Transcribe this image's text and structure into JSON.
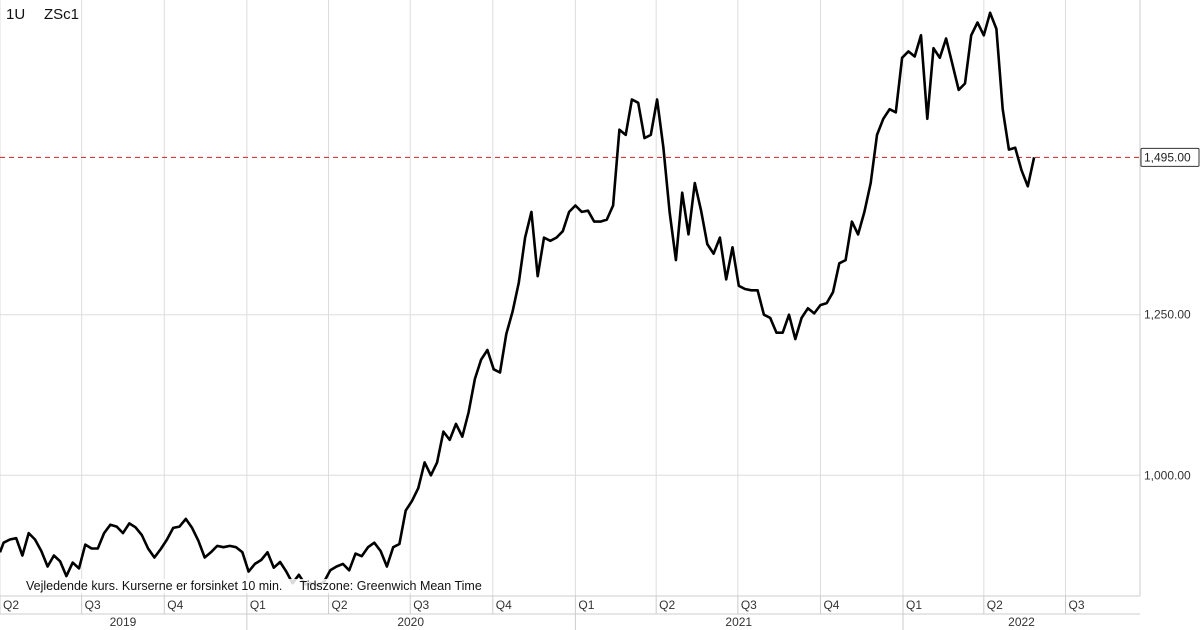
{
  "header": {
    "period": "1U",
    "symbol": "ZSc1"
  },
  "footnote": "Vejledende kurs. Kurserne er forsinket 10 min.     Tidszone: Greenwich Mean Time",
  "colors": {
    "line": "#000000",
    "reference": "#cc2222",
    "grid": "#dddddd"
  },
  "chart_data": {
    "type": "line",
    "y_ticks": [
      {
        "value": 1000,
        "label": "1,000.00"
      },
      {
        "value": 1250,
        "label": "1,250.00"
      }
    ],
    "ylim": [
      812,
      1740
    ],
    "xlim": [
      "2019-04-01",
      "2022-09-22"
    ],
    "grid": true,
    "last_price": {
      "value": 1495,
      "label": "1,495.00"
    },
    "quarter_ticks": [
      {
        "date": "2019-04-01",
        "label": "Q2"
      },
      {
        "date": "2019-07-01",
        "label": "Q3"
      },
      {
        "date": "2019-10-01",
        "label": "Q4"
      },
      {
        "date": "2020-01-01",
        "label": "Q1"
      },
      {
        "date": "2020-04-01",
        "label": "Q2"
      },
      {
        "date": "2020-07-01",
        "label": "Q3"
      },
      {
        "date": "2020-10-01",
        "label": "Q4"
      },
      {
        "date": "2021-01-01",
        "label": "Q1"
      },
      {
        "date": "2021-04-01",
        "label": "Q2"
      },
      {
        "date": "2021-07-01",
        "label": "Q3"
      },
      {
        "date": "2021-10-01",
        "label": "Q4"
      },
      {
        "date": "2022-01-01",
        "label": "Q1"
      },
      {
        "date": "2022-04-01",
        "label": "Q2"
      },
      {
        "date": "2022-07-01",
        "label": "Q3"
      }
    ],
    "years": [
      {
        "label": "2019",
        "start": "2019-04-01",
        "end": "2019-12-31"
      },
      {
        "label": "2020",
        "start": "2020-01-01",
        "end": "2020-12-31"
      },
      {
        "label": "2021",
        "start": "2021-01-01",
        "end": "2021-12-31"
      },
      {
        "label": "2022",
        "start": "2022-01-01",
        "end": "2022-09-22"
      }
    ],
    "series": [
      {
        "points": [
          [
            "2019-04-01",
            880
          ],
          [
            "2019-04-05",
            895
          ],
          [
            "2019-04-12",
            900
          ],
          [
            "2019-04-19",
            902
          ],
          [
            "2019-04-26",
            875
          ],
          [
            "2019-05-03",
            910
          ],
          [
            "2019-05-10",
            900
          ],
          [
            "2019-05-17",
            882
          ],
          [
            "2019-05-24",
            858
          ],
          [
            "2019-05-31",
            875
          ],
          [
            "2019-06-07",
            866
          ],
          [
            "2019-06-14",
            843
          ],
          [
            "2019-06-21",
            864
          ],
          [
            "2019-06-28",
            855
          ],
          [
            "2019-07-05",
            892
          ],
          [
            "2019-07-12",
            886
          ],
          [
            "2019-07-19",
            886
          ],
          [
            "2019-07-26",
            910
          ],
          [
            "2019-08-02",
            923
          ],
          [
            "2019-08-09",
            920
          ],
          [
            "2019-08-16",
            910
          ],
          [
            "2019-08-23",
            925
          ],
          [
            "2019-08-30",
            919
          ],
          [
            "2019-09-06",
            907
          ],
          [
            "2019-09-13",
            886
          ],
          [
            "2019-09-20",
            872
          ],
          [
            "2019-09-27",
            885
          ],
          [
            "2019-10-04",
            900
          ],
          [
            "2019-10-11",
            918
          ],
          [
            "2019-10-18",
            920
          ],
          [
            "2019-10-25",
            932
          ],
          [
            "2019-11-01",
            918
          ],
          [
            "2019-11-08",
            898
          ],
          [
            "2019-11-15",
            872
          ],
          [
            "2019-11-22",
            880
          ],
          [
            "2019-11-29",
            890
          ],
          [
            "2019-12-06",
            888
          ],
          [
            "2019-12-13",
            890
          ],
          [
            "2019-12-20",
            888
          ],
          [
            "2019-12-27",
            880
          ],
          [
            "2020-01-03",
            850
          ],
          [
            "2020-01-10",
            862
          ],
          [
            "2020-01-17",
            868
          ],
          [
            "2020-01-24",
            880
          ],
          [
            "2020-01-31",
            856
          ],
          [
            "2020-02-07",
            865
          ],
          [
            "2020-02-14",
            850
          ],
          [
            "2020-02-21",
            832
          ],
          [
            "2020-02-28",
            845
          ],
          [
            "2020-03-06",
            830
          ],
          [
            "2020-03-13",
            832
          ],
          [
            "2020-03-20",
            828
          ],
          [
            "2020-03-27",
            834
          ],
          [
            "2020-04-03",
            852
          ],
          [
            "2020-04-10",
            858
          ],
          [
            "2020-04-17",
            862
          ],
          [
            "2020-04-24",
            852
          ],
          [
            "2020-05-01",
            878
          ],
          [
            "2020-05-08",
            874
          ],
          [
            "2020-05-15",
            888
          ],
          [
            "2020-05-22",
            895
          ],
          [
            "2020-05-29",
            882
          ],
          [
            "2020-06-05",
            858
          ],
          [
            "2020-06-12",
            888
          ],
          [
            "2020-06-19",
            893
          ],
          [
            "2020-06-26",
            945
          ],
          [
            "2020-07-03",
            960
          ],
          [
            "2020-07-10",
            980
          ],
          [
            "2020-07-17",
            1020
          ],
          [
            "2020-07-24",
            1000
          ],
          [
            "2020-07-31",
            1020
          ],
          [
            "2020-08-07",
            1068
          ],
          [
            "2020-08-14",
            1055
          ],
          [
            "2020-08-21",
            1080
          ],
          [
            "2020-08-28",
            1060
          ],
          [
            "2020-09-04",
            1098
          ],
          [
            "2020-09-11",
            1150
          ],
          [
            "2020-09-18",
            1180
          ],
          [
            "2020-09-25",
            1195
          ],
          [
            "2020-10-02",
            1165
          ],
          [
            "2020-10-09",
            1160
          ],
          [
            "2020-10-16",
            1220
          ],
          [
            "2020-10-23",
            1255
          ],
          [
            "2020-10-30",
            1300
          ],
          [
            "2020-11-06",
            1370
          ],
          [
            "2020-11-13",
            1410
          ],
          [
            "2020-11-20",
            1310
          ],
          [
            "2020-11-27",
            1370
          ],
          [
            "2020-12-04",
            1365
          ],
          [
            "2020-12-11",
            1370
          ],
          [
            "2020-12-18",
            1380
          ],
          [
            "2020-12-25",
            1410
          ],
          [
            "2021-01-01",
            1420
          ],
          [
            "2021-01-08",
            1410
          ],
          [
            "2021-01-15",
            1412
          ],
          [
            "2021-01-22",
            1395
          ],
          [
            "2021-01-29",
            1395
          ],
          [
            "2021-02-05",
            1398
          ],
          [
            "2021-02-12",
            1420
          ],
          [
            "2021-02-19",
            1538
          ],
          [
            "2021-02-26",
            1530
          ],
          [
            "2021-03-05",
            1585
          ],
          [
            "2021-03-12",
            1580
          ],
          [
            "2021-03-19",
            1525
          ],
          [
            "2021-03-26",
            1530
          ],
          [
            "2021-04-02",
            1585
          ],
          [
            "2021-04-09",
            1510
          ],
          [
            "2021-04-16",
            1410
          ],
          [
            "2021-04-23",
            1335
          ],
          [
            "2021-04-30",
            1440
          ],
          [
            "2021-05-07",
            1375
          ],
          [
            "2021-05-14",
            1455
          ],
          [
            "2021-05-21",
            1412
          ],
          [
            "2021-05-28",
            1360
          ],
          [
            "2021-06-04",
            1345
          ],
          [
            "2021-06-11",
            1370
          ],
          [
            "2021-06-18",
            1305
          ],
          [
            "2021-06-25",
            1355
          ],
          [
            "2021-07-02",
            1295
          ],
          [
            "2021-07-09",
            1290
          ],
          [
            "2021-07-16",
            1288
          ],
          [
            "2021-07-23",
            1288
          ],
          [
            "2021-07-30",
            1250
          ],
          [
            "2021-08-06",
            1245
          ],
          [
            "2021-08-13",
            1222
          ],
          [
            "2021-08-20",
            1222
          ],
          [
            "2021-08-27",
            1250
          ],
          [
            "2021-09-03",
            1212
          ],
          [
            "2021-09-10",
            1245
          ],
          [
            "2021-09-17",
            1260
          ],
          [
            "2021-09-24",
            1252
          ],
          [
            "2021-10-01",
            1265
          ],
          [
            "2021-10-08",
            1268
          ],
          [
            "2021-10-15",
            1285
          ],
          [
            "2021-10-22",
            1330
          ],
          [
            "2021-10-29",
            1335
          ],
          [
            "2021-11-05",
            1395
          ],
          [
            "2021-11-12",
            1375
          ],
          [
            "2021-11-19",
            1410
          ],
          [
            "2021-11-26",
            1455
          ],
          [
            "2021-12-03",
            1530
          ],
          [
            "2021-12-10",
            1555
          ],
          [
            "2021-12-17",
            1570
          ],
          [
            "2021-12-24",
            1565
          ],
          [
            "2021-12-31",
            1650
          ],
          [
            "2022-01-07",
            1660
          ],
          [
            "2022-01-14",
            1652
          ],
          [
            "2022-01-21",
            1685
          ],
          [
            "2022-01-28",
            1555
          ],
          [
            "2022-02-04",
            1665
          ],
          [
            "2022-02-11",
            1650
          ],
          [
            "2022-02-18",
            1680
          ],
          [
            "2022-02-25",
            1640
          ],
          [
            "2022-03-04",
            1600
          ],
          [
            "2022-03-11",
            1610
          ],
          [
            "2022-03-18",
            1685
          ],
          [
            "2022-03-25",
            1705
          ],
          [
            "2022-04-01",
            1685
          ],
          [
            "2022-04-08",
            1720
          ],
          [
            "2022-04-15",
            1695
          ],
          [
            "2022-04-22",
            1570
          ],
          [
            "2022-04-29",
            1507
          ],
          [
            "2022-05-06",
            1510
          ],
          [
            "2022-05-13",
            1475
          ],
          [
            "2022-05-20",
            1450
          ],
          [
            "2022-05-27",
            1495
          ]
        ]
      }
    ]
  }
}
